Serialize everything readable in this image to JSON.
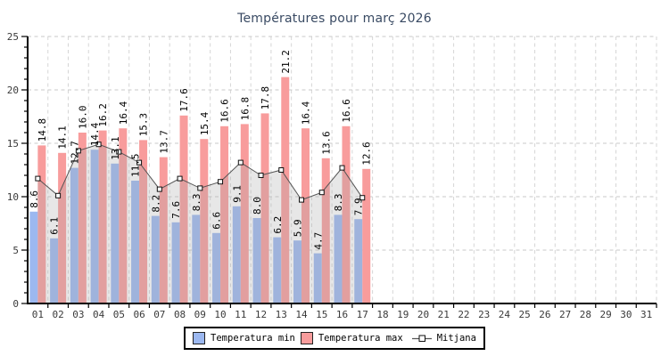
{
  "title": "Températures pour març 2026",
  "legend": {
    "min_label": "Temperatura min",
    "max_label": "Temperatura max",
    "mitjana_label": "Mitjana"
  },
  "colors": {
    "min_bar": "#9cb8f0",
    "max_bar": "#f89c9c",
    "area_fill": "rgba(170,170,170,0.28)",
    "line": "#555555",
    "marker_fill": "#ffffff",
    "marker_stroke": "#111111",
    "grid_h": "#c9c9c9",
    "grid_v": "#d6d6d6",
    "axis": "#000000",
    "tick_label": "#3a3a3a",
    "value_label": "#000000",
    "title_color": "#394a63"
  },
  "chart_data": {
    "type": "bar",
    "title": "Températures pour març 2026",
    "categories": [
      "01",
      "02",
      "03",
      "04",
      "05",
      "06",
      "07",
      "08",
      "09",
      "10",
      "11",
      "12",
      "13",
      "14",
      "15",
      "16",
      "17",
      "18",
      "19",
      "20",
      "21",
      "22",
      "23",
      "24",
      "25",
      "26",
      "27",
      "28",
      "29",
      "30",
      "31"
    ],
    "series": [
      {
        "name": "Temperatura min",
        "type": "bar",
        "values": [
          8.6,
          6.1,
          12.7,
          14.4,
          13.1,
          11.5,
          8.2,
          7.6,
          8.3,
          6.6,
          9.1,
          8.0,
          6.2,
          5.9,
          4.7,
          8.3,
          7.9
        ],
        "labels": [
          "8.6",
          "6.1",
          "12.7",
          "14.4",
          "13.1",
          "11.5",
          "8.2",
          "7.6",
          "8.3",
          "6.6",
          "9.1",
          "8.0",
          "6.2",
          "5.9",
          "4.7",
          "8.3",
          "7.9"
        ]
      },
      {
        "name": "Temperatura max",
        "type": "bar",
        "values": [
          14.8,
          14.1,
          16.0,
          16.2,
          16.4,
          15.3,
          13.7,
          17.6,
          15.4,
          16.6,
          16.8,
          17.8,
          21.2,
          16.4,
          13.6,
          16.6,
          12.6
        ],
        "labels": [
          "14.8",
          "14.1",
          "16.0",
          "16.2",
          "16.4",
          "15.3",
          "13.7",
          "17.6",
          "15.4",
          "16.6",
          "16.8",
          "17.8",
          "21.2",
          "16.4",
          "13.6",
          "16.6",
          "12.6"
        ]
      },
      {
        "name": "Mitjana",
        "type": "line-area",
        "values": [
          11.7,
          10.1,
          14.3,
          14.9,
          14.2,
          13.2,
          10.7,
          11.7,
          10.8,
          11.4,
          13.2,
          12.0,
          12.5,
          9.7,
          10.4,
          12.7,
          9.9
        ]
      }
    ],
    "ylim": [
      0,
      25
    ],
    "yticks": [
      0,
      5,
      10,
      15,
      20,
      25
    ],
    "y_minor_step": 1,
    "grid": true,
    "legend_position": "bottom"
  }
}
